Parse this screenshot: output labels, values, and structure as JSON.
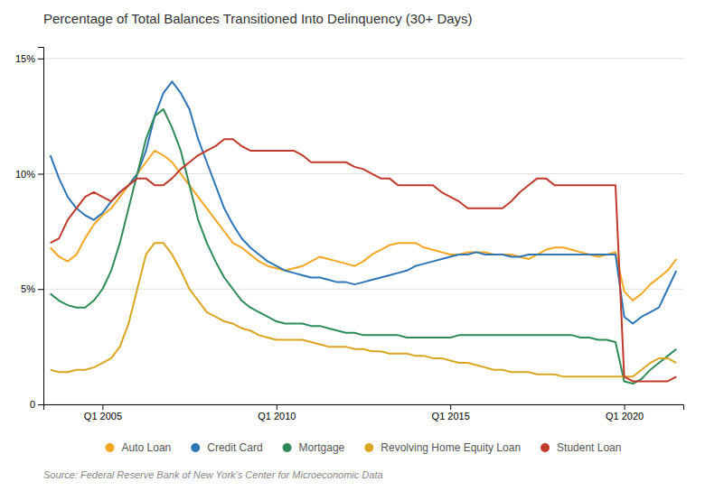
{
  "chart_data": {
    "type": "line",
    "title": "Percentage of Total Balances Transitioned Into Delinquency (30+ Days)",
    "annotations": [
      "Source: Federal Reserve Bank of New York’s Center for Microeconomic Data"
    ],
    "x": [
      2003.5,
      2003.75,
      2004,
      2004.25,
      2004.5,
      2004.75,
      2005,
      2005.25,
      2005.5,
      2005.75,
      2006,
      2006.25,
      2006.5,
      2006.75,
      2007,
      2007.25,
      2007.5,
      2007.75,
      2008,
      2008.25,
      2008.5,
      2008.75,
      2009,
      2009.25,
      2009.5,
      2009.75,
      2010,
      2010.25,
      2010.5,
      2010.75,
      2011,
      2011.25,
      2011.5,
      2011.75,
      2012,
      2012.25,
      2012.5,
      2012.75,
      2013,
      2013.25,
      2013.5,
      2013.75,
      2014,
      2014.25,
      2014.5,
      2014.75,
      2015,
      2015.25,
      2015.5,
      2015.75,
      2016,
      2016.25,
      2016.5,
      2016.75,
      2017,
      2017.25,
      2017.5,
      2017.75,
      2018,
      2018.25,
      2018.5,
      2018.75,
      2019,
      2019.25,
      2019.5,
      2019.75,
      2020,
      2020.25,
      2020.5,
      2020.75,
      2021,
      2021.25,
      2021.5
    ],
    "xlim": [
      2003.3,
      2021.7
    ],
    "xticks": [
      {
        "value": 2005,
        "label": "Q1 2005"
      },
      {
        "value": 2010,
        "label": "Q1 2010"
      },
      {
        "value": 2015,
        "label": "Q1 2015"
      },
      {
        "value": 2020,
        "label": "Q1 2020"
      }
    ],
    "ylim": [
      0,
      15.5
    ],
    "yticks": [
      0,
      {
        "value": 5,
        "label": "5%"
      },
      {
        "value": 10,
        "label": "10%"
      },
      {
        "value": 15,
        "label": "15%"
      }
    ],
    "grid": "y",
    "legend": "bottom",
    "series": [
      {
        "name": "Auto Loan",
        "color": "#F5A623",
        "values": [
          6.8,
          6.4,
          6.2,
          6.5,
          7.2,
          7.8,
          8.2,
          8.5,
          9.0,
          9.5,
          10.0,
          10.5,
          11.0,
          10.8,
          10.5,
          10.0,
          9.5,
          9.0,
          8.5,
          8.0,
          7.5,
          7.0,
          6.8,
          6.5,
          6.2,
          6.0,
          5.9,
          5.8,
          5.9,
          6.0,
          6.2,
          6.4,
          6.3,
          6.2,
          6.1,
          6.0,
          6.2,
          6.5,
          6.7,
          6.9,
          7.0,
          7.0,
          7.0,
          6.8,
          6.7,
          6.6,
          6.5,
          6.5,
          6.6,
          6.6,
          6.6,
          6.5,
          6.5,
          6.5,
          6.4,
          6.3,
          6.5,
          6.7,
          6.8,
          6.8,
          6.7,
          6.6,
          6.5,
          6.4,
          6.5,
          6.6,
          4.9,
          4.5,
          4.8,
          5.2,
          5.5,
          5.8,
          6.3
        ]
      },
      {
        "name": "Credit Card",
        "color": "#2E75B6",
        "values": [
          10.8,
          9.8,
          9.0,
          8.5,
          8.2,
          8.0,
          8.3,
          8.8,
          9.2,
          9.5,
          10.0,
          11.0,
          12.5,
          13.5,
          14.0,
          13.5,
          12.8,
          11.5,
          10.5,
          9.5,
          8.5,
          7.8,
          7.2,
          6.8,
          6.5,
          6.2,
          6.0,
          5.8,
          5.7,
          5.6,
          5.5,
          5.5,
          5.4,
          5.3,
          5.3,
          5.2,
          5.3,
          5.4,
          5.5,
          5.6,
          5.7,
          5.8,
          6.0,
          6.1,
          6.2,
          6.3,
          6.4,
          6.5,
          6.5,
          6.6,
          6.5,
          6.5,
          6.5,
          6.4,
          6.4,
          6.5,
          6.5,
          6.5,
          6.5,
          6.5,
          6.5,
          6.5,
          6.5,
          6.5,
          6.5,
          6.5,
          3.8,
          3.5,
          3.8,
          4.0,
          4.2,
          5.0,
          5.8
        ]
      },
      {
        "name": "Mortgage",
        "color": "#2E8B57",
        "values": [
          4.8,
          4.5,
          4.3,
          4.2,
          4.2,
          4.5,
          5.0,
          5.8,
          7.0,
          8.5,
          10.0,
          11.5,
          12.5,
          12.8,
          12.0,
          11.0,
          9.5,
          8.0,
          7.0,
          6.2,
          5.5,
          5.0,
          4.5,
          4.2,
          4.0,
          3.8,
          3.6,
          3.5,
          3.5,
          3.5,
          3.4,
          3.4,
          3.3,
          3.2,
          3.1,
          3.1,
          3.0,
          3.0,
          3.0,
          3.0,
          3.0,
          2.9,
          2.9,
          2.9,
          2.9,
          2.9,
          2.9,
          3.0,
          3.0,
          3.0,
          3.0,
          3.0,
          3.0,
          3.0,
          3.0,
          3.0,
          3.0,
          3.0,
          3.0,
          3.0,
          3.0,
          2.9,
          2.9,
          2.8,
          2.8,
          2.7,
          1.0,
          0.9,
          1.1,
          1.5,
          1.8,
          2.1,
          2.4
        ]
      },
      {
        "name": "Revolving Home Equity Loan",
        "color": "#DAA520",
        "values": [
          1.5,
          1.4,
          1.4,
          1.5,
          1.5,
          1.6,
          1.8,
          2.0,
          2.5,
          3.5,
          5.0,
          6.5,
          7.0,
          7.0,
          6.5,
          5.8,
          5.0,
          4.5,
          4.0,
          3.8,
          3.6,
          3.5,
          3.3,
          3.2,
          3.0,
          2.9,
          2.8,
          2.8,
          2.8,
          2.8,
          2.7,
          2.6,
          2.5,
          2.5,
          2.5,
          2.4,
          2.4,
          2.3,
          2.3,
          2.2,
          2.2,
          2.2,
          2.1,
          2.1,
          2.0,
          2.0,
          1.9,
          1.8,
          1.8,
          1.7,
          1.6,
          1.5,
          1.5,
          1.4,
          1.4,
          1.4,
          1.3,
          1.3,
          1.3,
          1.2,
          1.2,
          1.2,
          1.2,
          1.2,
          1.2,
          1.2,
          1.2,
          1.2,
          1.5,
          1.8,
          2.0,
          2.0,
          1.8
        ]
      },
      {
        "name": "Student Loan",
        "color": "#C0392B",
        "values": [
          7.0,
          7.2,
          8.0,
          8.5,
          9.0,
          9.2,
          9.0,
          8.8,
          9.2,
          9.5,
          9.8,
          9.8,
          9.5,
          9.5,
          9.8,
          10.2,
          10.5,
          10.8,
          11.0,
          11.2,
          11.5,
          11.5,
          11.2,
          11.0,
          11.0,
          11.0,
          11.0,
          11.0,
          11.0,
          10.8,
          10.5,
          10.5,
          10.5,
          10.5,
          10.5,
          10.3,
          10.2,
          10.0,
          9.8,
          9.8,
          9.5,
          9.5,
          9.5,
          9.5,
          9.5,
          9.2,
          9.0,
          8.8,
          8.5,
          8.5,
          8.5,
          8.5,
          8.5,
          8.8,
          9.2,
          9.5,
          9.8,
          9.8,
          9.5,
          9.5,
          9.5,
          9.5,
          9.5,
          9.5,
          9.5,
          9.5,
          1.2,
          1.0,
          1.0,
          1.0,
          1.0,
          1.0,
          1.2
        ]
      }
    ]
  }
}
